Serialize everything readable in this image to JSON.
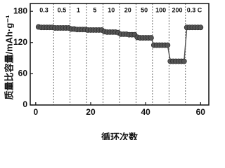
{
  "chart_data": {
    "type": "line",
    "x_label": "循环次数",
    "y_label": "质量比容量/mAh·g⁻¹",
    "rate_labels": [
      "0.3",
      "0.5",
      "1",
      "5",
      "10",
      "20",
      "50",
      "100",
      "200",
      "0.3 C"
    ],
    "dividers": [
      6.5,
      12.5,
      18.5,
      24.5,
      30.5,
      36.5,
      42.5,
      48.5,
      54.5
    ],
    "x": [
      1,
      2,
      3,
      4,
      5,
      6,
      7,
      8,
      9,
      10,
      11,
      12,
      13,
      14,
      15,
      16,
      17,
      18,
      19,
      20,
      21,
      22,
      23,
      24,
      25,
      26,
      27,
      28,
      29,
      30,
      31,
      32,
      33,
      34,
      35,
      36,
      37,
      38,
      39,
      40,
      41,
      42,
      43,
      44,
      45,
      46,
      47,
      48,
      49,
      50,
      51,
      52,
      53,
      54,
      55,
      56,
      57,
      58,
      59,
      60
    ],
    "series": [
      {
        "color": "#555555",
        "values": [
          150,
          149,
          149,
          149,
          149,
          149,
          148,
          148,
          148,
          148,
          148,
          148,
          146,
          146,
          145,
          145,
          145,
          145,
          144,
          144,
          144,
          144,
          144,
          144,
          141,
          140,
          140,
          140,
          140,
          139,
          136,
          136,
          136,
          135,
          135,
          135,
          130,
          129,
          129,
          129,
          129,
          129,
          115,
          115,
          115,
          115,
          115,
          115,
          84,
          84,
          84,
          84,
          84,
          84,
          149,
          149,
          149,
          149,
          149,
          149
        ]
      }
    ],
    "xlim": [
      -2,
      63
    ],
    "ylim": [
      0,
      195
    ],
    "xticks": [
      0,
      20,
      40,
      60
    ],
    "yticks": [
      0,
      60,
      120,
      180
    ]
  }
}
